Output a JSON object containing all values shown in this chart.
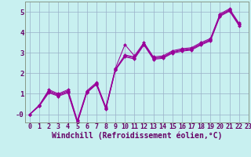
{
  "title": "",
  "xlabel": "Windchill (Refroidissement éolien,°C)",
  "ylabel": "",
  "bg_color": "#c8f0f0",
  "grid_color": "#9ab0c8",
  "line_color": "#990099",
  "xlim": [
    -0.5,
    23
  ],
  "ylim": [
    -0.4,
    5.5
  ],
  "xticks": [
    0,
    1,
    2,
    3,
    4,
    5,
    6,
    7,
    8,
    9,
    10,
    11,
    12,
    13,
    14,
    15,
    16,
    17,
    18,
    19,
    20,
    21,
    22,
    23
  ],
  "yticks": [
    0,
    1,
    2,
    3,
    4,
    5
  ],
  "ytick_labels": [
    "-0",
    "1",
    "2",
    "3",
    "4",
    "5"
  ],
  "series": [
    [
      0.0,
      0.45,
      1.2,
      1.0,
      1.2,
      -0.3,
      1.15,
      1.55,
      0.35,
      2.25,
      3.4,
      2.85,
      3.5,
      2.8,
      2.85,
      3.1,
      3.2,
      3.25,
      3.5,
      3.7,
      4.9,
      5.15,
      4.45
    ],
    [
      0.0,
      0.45,
      1.15,
      0.95,
      1.15,
      -0.35,
      1.1,
      1.5,
      0.3,
      2.2,
      2.9,
      2.8,
      3.45,
      2.75,
      2.8,
      3.05,
      3.15,
      3.2,
      3.45,
      3.65,
      4.85,
      5.1,
      4.4
    ],
    [
      0.0,
      0.42,
      1.1,
      0.92,
      1.1,
      -0.38,
      1.08,
      1.48,
      0.28,
      2.18,
      2.85,
      2.75,
      3.42,
      2.72,
      2.77,
      3.02,
      3.12,
      3.17,
      3.42,
      3.62,
      4.82,
      5.07,
      4.37
    ],
    [
      0.0,
      0.4,
      1.05,
      0.88,
      1.05,
      -0.42,
      1.05,
      1.45,
      0.25,
      2.15,
      2.8,
      2.7,
      3.38,
      2.68,
      2.73,
      2.98,
      3.08,
      3.13,
      3.38,
      3.58,
      4.78,
      5.03,
      4.33
    ]
  ],
  "xlabel_fontsize": 7,
  "tick_fontsize": 6,
  "marker": "D",
  "markersize": 2.0,
  "linewidth": 0.75
}
